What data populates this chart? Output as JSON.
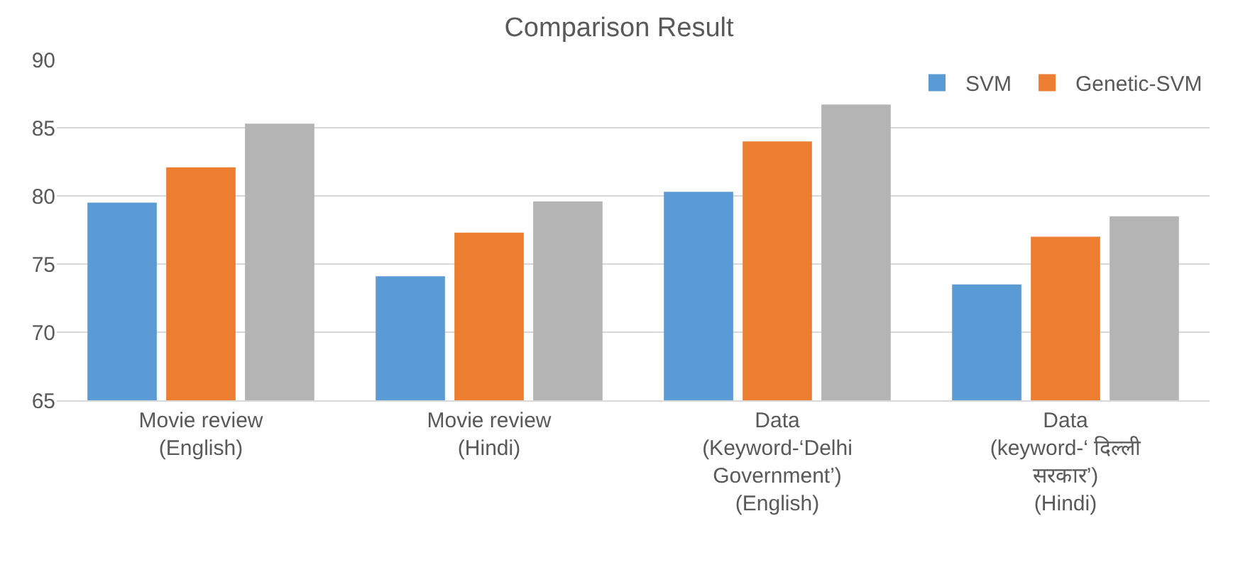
{
  "chart_data": {
    "type": "bar",
    "title": "Comparison Result",
    "categories": [
      "Movie review\n(English)",
      "Movie review\n(Hindi)",
      "Data\n(Keyword-‘Delhi\nGovernment’)\n(English)",
      "Data\n(keyword-‘ दिल्ली\nसरकार’)\n(Hindi)"
    ],
    "series": [
      {
        "name": "SVM",
        "color": "#5b9bd5",
        "values": [
          79.5,
          74.1,
          80.3,
          73.5
        ]
      },
      {
        "name": "Genetic-SVM",
        "color": "#ed7d31",
        "values": [
          82.1,
          77.3,
          84.0,
          77.0
        ]
      },
      {
        "color": "#b4b4b4",
        "values": [
          85.3,
          79.6,
          86.7,
          78.5
        ]
      }
    ],
    "ylim": [
      65,
      90
    ],
    "yticks": [
      65,
      70,
      75,
      80,
      85,
      90
    ],
    "grid": "y",
    "legend": "top right"
  }
}
